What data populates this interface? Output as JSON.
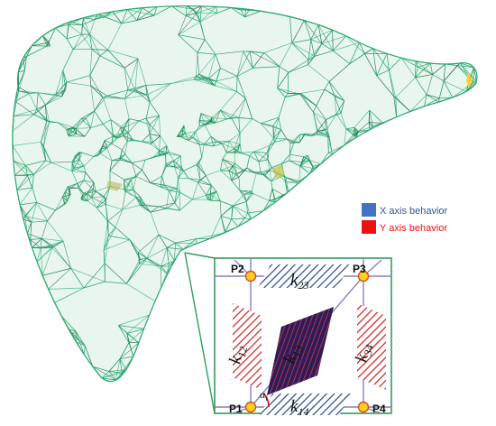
{
  "legend": {
    "x_axis": {
      "label": "X axis behavior",
      "color": "#4472c4"
    },
    "y_axis": {
      "label": "Y axis behavior",
      "color": "#ee1111"
    }
  },
  "nodes": {
    "p1": "P1",
    "p2": "P2",
    "p3": "P3",
    "p4": "P4"
  },
  "springs": {
    "k12": {
      "main": "k",
      "sub": "12"
    },
    "k13": {
      "main": "k",
      "sub": "13"
    },
    "k14": {
      "main": "k",
      "sub": "14"
    },
    "k23": {
      "main": "k",
      "sub": "23"
    },
    "k34": {
      "main": "k",
      "sub": "34"
    }
  },
  "angle": {
    "main": "α",
    "sub": "i"
  },
  "colors": {
    "mesh": "#2aa870",
    "mesh_dark": "#1f6b45",
    "inset_frame": "#2e9e5a",
    "inner_frame": "#8c7fc0",
    "node_fill": "#ffd21f",
    "node_stroke": "#d94c1a",
    "x_hatch": "#2a4a86",
    "y_hatch": "#d21e1e",
    "diag_fill": "#2b1d5a",
    "diag_hatch": "#e0343c"
  }
}
